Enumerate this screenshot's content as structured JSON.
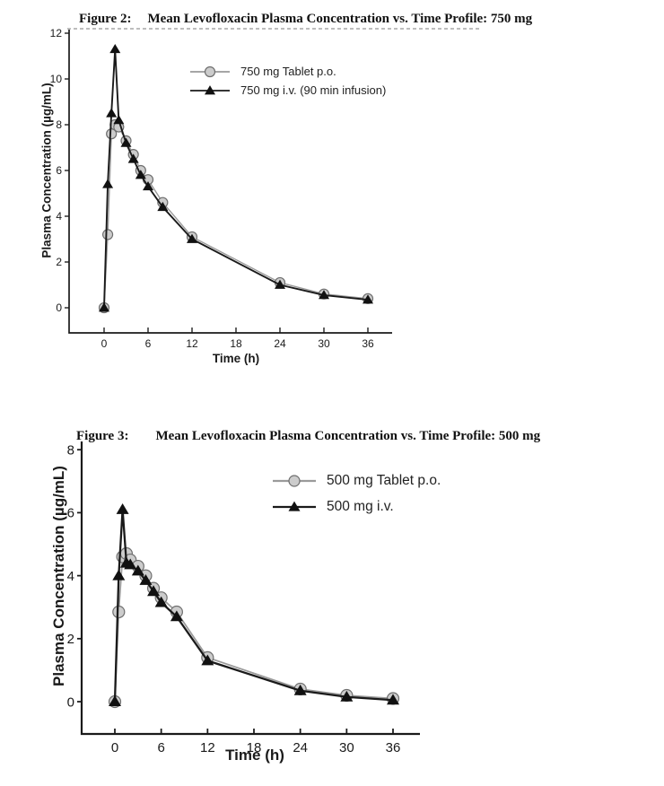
{
  "page": {
    "background": "#ffffff",
    "text_color": "#1a1a1a"
  },
  "chart_data": [
    {
      "type": "line",
      "figure_label": "Figure 2:",
      "title": "Mean Levofloxacin Plasma Concentration vs. Time Profile: 750 mg",
      "xlabel": "Time (h)",
      "ylabel": "Plasma Concentration (µg/mL)",
      "xlim": [
        0,
        36
      ],
      "ylim": [
        0,
        12
      ],
      "xticks": [
        0,
        6,
        12,
        18,
        24,
        30,
        36
      ],
      "yticks": [
        0,
        2,
        4,
        6,
        8,
        10,
        12
      ],
      "grid": false,
      "legend_position": "inside upper-center",
      "x": [
        0,
        0.5,
        1,
        1.5,
        2,
        3,
        4,
        5,
        6,
        8,
        12,
        24,
        30,
        36
      ],
      "series": [
        {
          "name": "750 mg Tablet p.o.",
          "marker": "circle",
          "line_color": "#9a9a9a",
          "marker_fill": "#cccccc",
          "marker_stroke": "#6e6e6e",
          "values": [
            0,
            3.2,
            7.6,
            8.0,
            7.9,
            7.3,
            6.7,
            6.0,
            5.6,
            4.6,
            3.1,
            1.1,
            0.6,
            0.4
          ]
        },
        {
          "name": "750 mg i.v. (90 min infusion)",
          "marker": "triangle",
          "line_color": "#1a1a1a",
          "marker_fill": "#111111",
          "marker_stroke": "#111111",
          "values": [
            0,
            5.4,
            8.5,
            11.3,
            8.2,
            7.2,
            6.5,
            5.8,
            5.3,
            4.4,
            3.0,
            1.0,
            0.55,
            0.35
          ]
        }
      ]
    },
    {
      "type": "line",
      "figure_label": "Figure 3:",
      "title": "Mean Levofloxacin Plasma Concentration vs. Time Profile: 500 mg",
      "xlabel": "Time (h)",
      "ylabel": "Plasma Concentration (µg/mL)",
      "xlim": [
        0,
        36
      ],
      "ylim": [
        0,
        8
      ],
      "xticks": [
        0,
        6,
        12,
        18,
        24,
        30,
        36
      ],
      "yticks": [
        0,
        2,
        4,
        6,
        8
      ],
      "grid": false,
      "legend_position": "inside upper-right",
      "x": [
        0,
        0.5,
        1,
        1.5,
        2,
        3,
        4,
        5,
        6,
        8,
        12,
        24,
        30,
        36
      ],
      "series": [
        {
          "name": "500 mg Tablet p.o.",
          "marker": "circle",
          "line_color": "#9a9a9a",
          "marker_fill": "#cccccc",
          "marker_stroke": "#6e6e6e",
          "values": [
            0,
            2.85,
            4.6,
            4.7,
            4.5,
            4.3,
            4.0,
            3.6,
            3.3,
            2.85,
            1.4,
            0.4,
            0.2,
            0.1
          ]
        },
        {
          "name": "500 mg i.v.",
          "marker": "triangle",
          "line_color": "#1a1a1a",
          "marker_fill": "#111111",
          "marker_stroke": "#111111",
          "values": [
            0,
            4.0,
            6.1,
            4.4,
            4.35,
            4.15,
            3.85,
            3.5,
            3.15,
            2.7,
            1.3,
            0.35,
            0.15,
            0.05
          ]
        }
      ]
    }
  ]
}
